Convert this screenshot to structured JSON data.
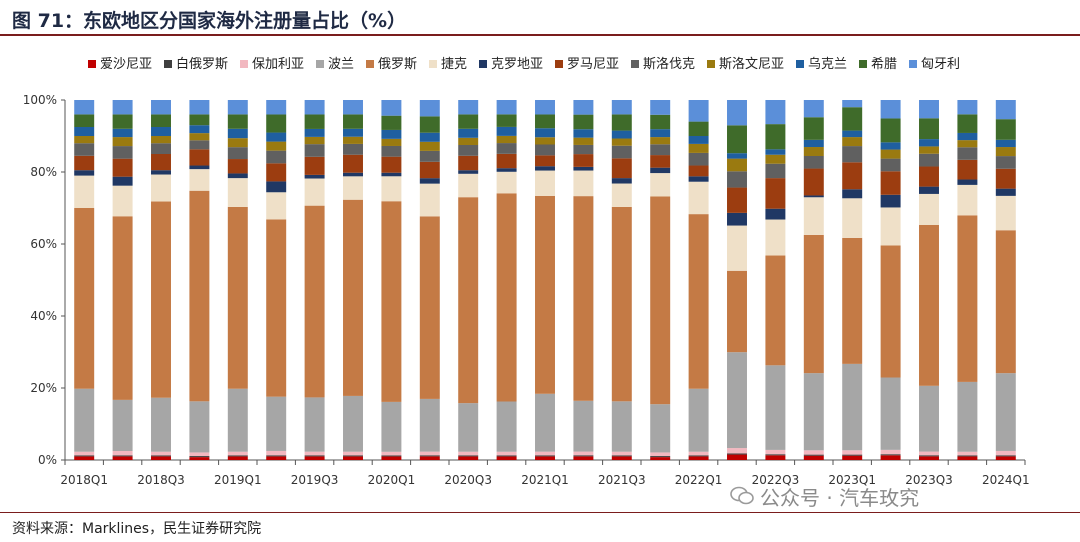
{
  "title": "图 71：东欧地区分国家海外注册量占比（%）",
  "source": "资料来源：Marklines，民生证券研究院",
  "watermark": "公众号 · 汽车玫究",
  "chart_data": {
    "type": "bar",
    "stacked": true,
    "percent": true,
    "ylim": [
      0,
      100
    ],
    "yticks": [
      "0%",
      "20%",
      "40%",
      "60%",
      "80%",
      "100%"
    ],
    "grid": false,
    "legend_position": "top",
    "categories": [
      "2018Q1",
      "2018Q2",
      "2018Q3",
      "2018Q4",
      "2019Q1",
      "2019Q2",
      "2019Q3",
      "2019Q4",
      "2020Q1",
      "2020Q2",
      "2020Q3",
      "2020Q4",
      "2021Q1",
      "2021Q2",
      "2021Q3",
      "2021Q4",
      "2022Q1",
      "2022Q2",
      "2022Q3",
      "2022Q4",
      "2023Q1",
      "2023Q2",
      "2023Q3",
      "2023Q4",
      "2024Q1"
    ],
    "xtick_labels": [
      "2018Q1",
      "",
      "2018Q3",
      "",
      "2019Q1",
      "",
      "2019Q3",
      "",
      "2020Q1",
      "",
      "2020Q3",
      "",
      "2021Q1",
      "",
      "2021Q3",
      "",
      "2022Q1",
      "",
      "2022Q3",
      "",
      "2023Q1",
      "",
      "2023Q3",
      "",
      "2024Q1"
    ],
    "series": [
      {
        "name": "爱沙尼亚",
        "color": "#c00000",
        "values": [
          1.0,
          1.0,
          1.0,
          0.8,
          1.0,
          1.0,
          1.0,
          1.0,
          1.0,
          1.0,
          1.0,
          1.0,
          1.0,
          1.0,
          1.0,
          0.8,
          1.0,
          1.5,
          1.3,
          1.2,
          1.2,
          1.3,
          1.0,
          1.0,
          1.0
        ]
      },
      {
        "name": "白俄罗斯",
        "color": "#3f3f3f",
        "values": [
          0.3,
          0.3,
          0.3,
          0.3,
          0.3,
          0.3,
          0.3,
          0.3,
          0.3,
          0.3,
          0.3,
          0.3,
          0.3,
          0.3,
          0.3,
          0.3,
          0.3,
          0.3,
          0.3,
          0.3,
          0.3,
          0.3,
          0.3,
          0.3,
          0.3
        ]
      },
      {
        "name": "保加利亚",
        "color": "#f2b8c0",
        "values": [
          1.0,
          1.2,
          1.0,
          1.0,
          1.0,
          1.2,
          1.0,
          1.0,
          1.0,
          1.0,
          1.0,
          1.0,
          1.0,
          1.0,
          1.0,
          1.0,
          1.0,
          1.5,
          1.2,
          1.2,
          1.2,
          1.2,
          1.0,
          1.0,
          1.2
        ]
      },
      {
        "name": "波兰",
        "color": "#a6a6a6",
        "values": [
          17.5,
          14.2,
          15.0,
          14.2,
          17.5,
          15.0,
          15.0,
          15.5,
          14.0,
          14.5,
          13.5,
          14.0,
          16.0,
          13.9,
          14.0,
          13.4,
          17.5,
          26.5,
          23.5,
          21.5,
          24.0,
          20.0,
          18.0,
          19.5,
          21.5
        ]
      },
      {
        "name": "俄罗斯",
        "color": "#c47a45",
        "values": [
          50.2,
          51.0,
          54.5,
          58.5,
          50.5,
          49.0,
          53.0,
          54.5,
          56.3,
          50.2,
          57.2,
          58.0,
          54.7,
          56.0,
          54.0,
          57.7,
          48.5,
          22.5,
          30.5,
          38.5,
          35.0,
          36.5,
          44.0,
          46.5,
          39.5
        ]
      },
      {
        "name": "捷克",
        "color": "#efe0c8",
        "values": [
          9.0,
          8.5,
          7.5,
          6.0,
          8.0,
          7.5,
          7.5,
          6.5,
          7.0,
          9.0,
          6.5,
          6.0,
          7.0,
          7.0,
          6.5,
          6.5,
          9.0,
          12.5,
          10.0,
          10.5,
          11.0,
          10.5,
          8.5,
          8.5,
          9.5
        ]
      },
      {
        "name": "克罗地亚",
        "color": "#203864",
        "values": [
          1.5,
          2.5,
          1.2,
          1.0,
          1.3,
          3.0,
          1.0,
          1.0,
          1.0,
          1.5,
          1.0,
          1.0,
          1.2,
          1.0,
          1.5,
          1.5,
          1.5,
          3.5,
          3.0,
          0.5,
          2.5,
          3.5,
          2.0,
          1.5,
          2.0
        ]
      },
      {
        "name": "罗马尼亚",
        "color": "#9c3d10",
        "values": [
          4.0,
          5.0,
          4.5,
          4.5,
          4.0,
          5.0,
          5.0,
          5.0,
          4.5,
          4.5,
          4.0,
          4.0,
          3.0,
          3.5,
          5.5,
          3.5,
          3.0,
          7.0,
          8.5,
          7.5,
          7.5,
          6.5,
          5.5,
          5.5,
          5.5
        ]
      },
      {
        "name": "斯洛伐克",
        "color": "#606060",
        "values": [
          3.5,
          3.5,
          3.0,
          2.5,
          3.3,
          3.5,
          3.5,
          3.0,
          3.0,
          3.0,
          3.0,
          3.0,
          3.0,
          2.5,
          3.5,
          3.0,
          3.5,
          4.5,
          4.0,
          3.5,
          4.5,
          3.5,
          3.5,
          3.5,
          3.5
        ]
      },
      {
        "name": "斯洛文尼亚",
        "color": "#9a7a10",
        "values": [
          2.0,
          2.5,
          2.0,
          2.0,
          2.5,
          2.5,
          2.0,
          2.0,
          2.0,
          2.5,
          2.0,
          2.0,
          2.0,
          2.0,
          2.0,
          2.0,
          2.5,
          3.5,
          2.5,
          2.5,
          2.5,
          2.5,
          2.0,
          2.0,
          2.5
        ]
      },
      {
        "name": "乌克兰",
        "color": "#1f5fa0",
        "values": [
          2.5,
          2.3,
          2.5,
          2.2,
          2.6,
          2.5,
          2.2,
          2.2,
          2.5,
          2.5,
          2.5,
          2.5,
          2.5,
          2.3,
          2.2,
          2.2,
          2.2,
          1.5,
          1.5,
          2.0,
          1.8,
          2.0,
          2.0,
          2.0,
          2.0
        ]
      },
      {
        "name": "希腊",
        "color": "#3f6b2a",
        "values": [
          3.5,
          4.0,
          3.5,
          3.0,
          4.0,
          5.0,
          4.0,
          4.0,
          4.0,
          4.5,
          4.0,
          3.5,
          3.8,
          4.0,
          4.5,
          4.0,
          4.0,
          7.7,
          7.0,
          6.3,
          6.5,
          6.6,
          5.7,
          5.2,
          5.7
        ]
      },
      {
        "name": "匈牙利",
        "color": "#5b8fd9",
        "values": [
          4.0,
          4.0,
          4.0,
          4.0,
          4.0,
          4.0,
          4.0,
          4.0,
          4.4,
          4.5,
          4.0,
          4.0,
          4.0,
          4.0,
          4.0,
          4.1,
          6.0,
          7.0,
          6.7,
          4.8,
          2.0,
          5.1,
          5.0,
          4.0,
          5.3
        ]
      }
    ]
  }
}
